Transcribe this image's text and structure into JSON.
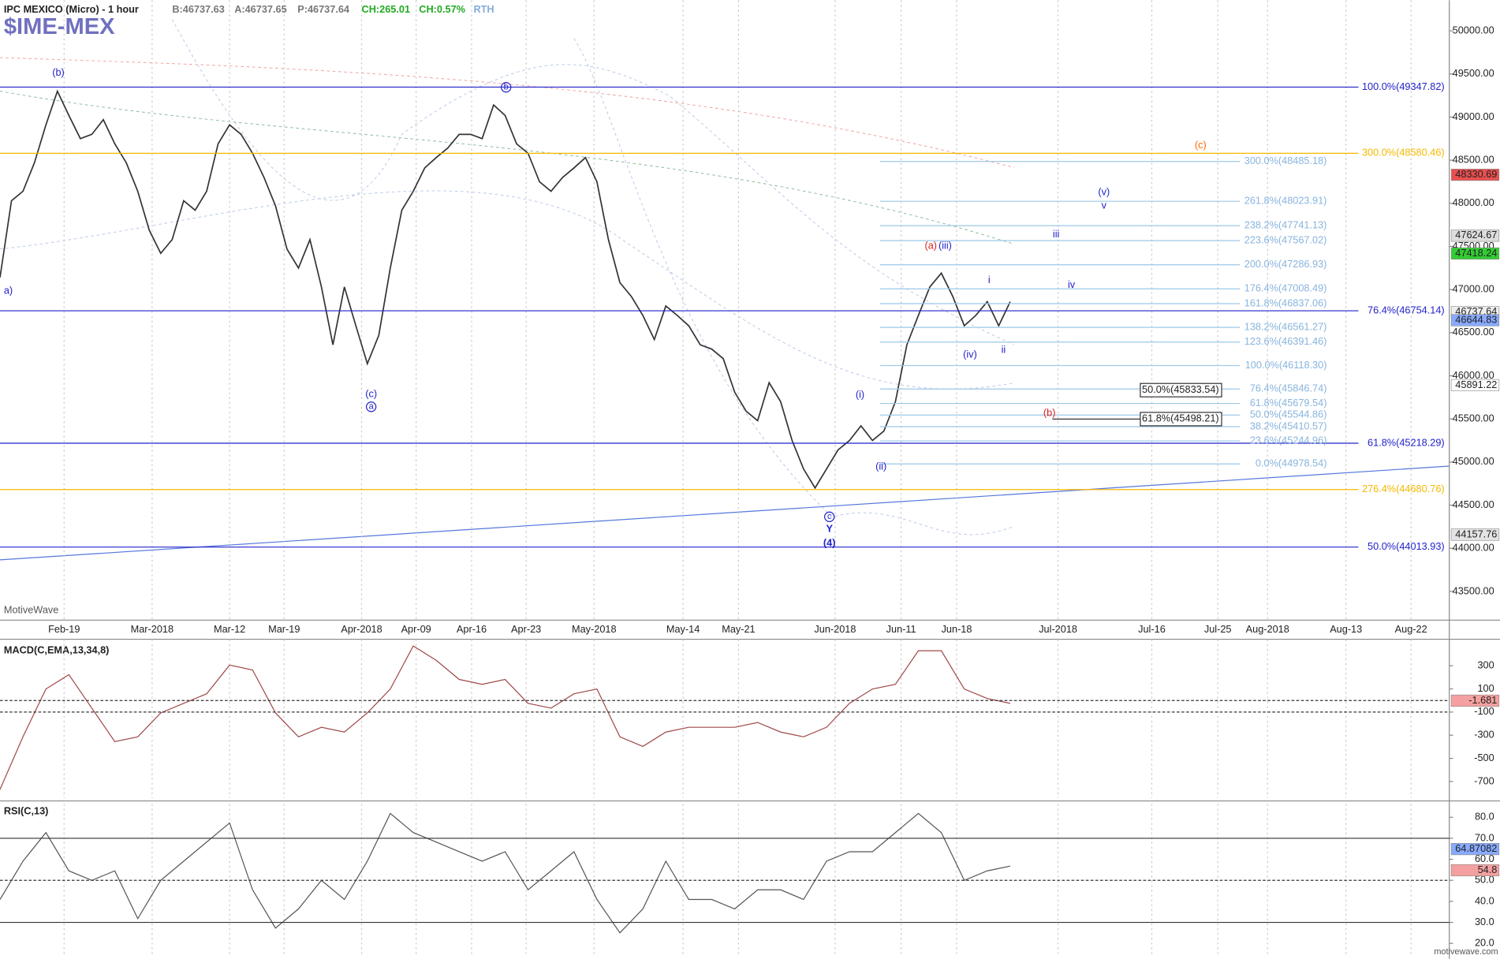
{
  "chart_data": [
    {
      "type": "line",
      "title": "IPC MEXICO (Micro) - 1 hour",
      "symbol": "$IME-MEX",
      "quote": [
        {
          "text": "B:46737.63",
          "color": "#777777"
        },
        {
          "text": "A:46737.65",
          "color": "#777777"
        },
        {
          "text": "P:46737.64",
          "color": "#777777"
        },
        {
          "text": "CH:265.01",
          "color": "#22aa22"
        },
        {
          "text": "CH:0.57%",
          "color": "#22aa22"
        },
        {
          "text": "RTH",
          "color": "#88aadd"
        }
      ],
      "xticks": [
        "Feb-19",
        "Mar-2018",
        "Mar-12",
        "Mar-19",
        "Apr-2018",
        "Apr-09",
        "Apr-16",
        "Apr-23",
        "May-2018",
        "May-14",
        "May-21",
        "Jun-2018",
        "Jun-11",
        "Jun-18",
        "Jul-2018",
        "Jul-16",
        "Jul-25",
        "Aug-2018",
        "Aug-13",
        "Aug-22"
      ],
      "ylim": [
        43167,
        50355
      ],
      "yticks": [
        {
          "value": 50000,
          "label": "50000.00"
        },
        {
          "value": 49500,
          "label": "49500.00"
        },
        {
          "value": 49000,
          "label": "49000.00"
        },
        {
          "value": 48500,
          "label": "48500.00"
        },
        {
          "value": 48000,
          "label": "48000.00"
        },
        {
          "value": 47500,
          "label": "47500.00"
        },
        {
          "value": 47000,
          "label": "47000.00"
        },
        {
          "value": 46500,
          "label": "46500.00"
        },
        {
          "value": 46000,
          "label": "46000.00"
        },
        {
          "value": 45500,
          "label": "45500.00"
        },
        {
          "value": 45000,
          "label": "45000.00"
        },
        {
          "value": 44500,
          "label": "44500.00"
        },
        {
          "value": 44000,
          "label": "44000.00"
        },
        {
          "value": 43500,
          "label": "43500.00"
        }
      ],
      "series": [
        {
          "color": "#333333",
          "values": [
            47140,
            48030,
            48140,
            48470,
            48910,
            49300,
            49020,
            48750,
            48800,
            48970,
            48690,
            48470,
            48140,
            47690,
            47420,
            47580,
            48030,
            47920,
            48140,
            48690,
            48910,
            48800,
            48580,
            48300,
            47970,
            47470,
            47250,
            47580,
            47030,
            46360,
            47030,
            46580,
            46140,
            46470,
            47250,
            47920,
            48140,
            48410,
            48530,
            48640,
            48800,
            48800,
            48750,
            49140,
            49020,
            48690,
            48580,
            48250,
            48140,
            48300,
            48410,
            48530,
            48250,
            47580,
            47080,
            46920,
            46700,
            46420,
            46810,
            46700,
            46580,
            46360,
            46310,
            46200,
            45810,
            45590,
            45480,
            45920,
            45700,
            45250,
            44920,
            44700,
            44920,
            45140,
            45250,
            45420,
            45250,
            45360,
            45700,
            46360,
            46700,
            47030,
            47190,
            46920,
            46580,
            46700,
            46860,
            46580,
            46860
          ]
        }
      ],
      "hlines": [
        {
          "value": 49347.82,
          "label": "100.0%(49347.82)",
          "color": "#2222cc"
        },
        {
          "value": 48580.46,
          "label": "300.0%(48580.46)",
          "color": "#f5b800"
        },
        {
          "value": 46754.14,
          "label": "76.4%(46754.14)",
          "color": "#2222cc"
        },
        {
          "value": 45218.29,
          "label": "61.8%(45218.29)",
          "color": "#2222cc"
        },
        {
          "value": 44680.76,
          "label": "276.4%(44680.76)",
          "color": "#f5b800"
        },
        {
          "value": 44013.93,
          "label": "50.0%(44013.93)",
          "color": "#2222cc"
        }
      ],
      "fib_levels": [
        {
          "value": 48485.18,
          "label": "300.0%(48485.18)"
        },
        {
          "value": 48023.91,
          "label": "261.8%(48023.91)"
        },
        {
          "value": 47741.13,
          "label": "238.2%(47741.13)"
        },
        {
          "value": 47567.02,
          "label": "223.6%(47567.02)"
        },
        {
          "value": 47286.93,
          "label": "200.0%(47286.93)"
        },
        {
          "value": 47008.49,
          "label": "176.4%(47008.49)"
        },
        {
          "value": 46837.06,
          "label": "161.8%(46837.06)"
        },
        {
          "value": 46561.27,
          "label": "138.2%(46561.27)"
        },
        {
          "value": 46391.46,
          "label": "123.6%(46391.46)"
        },
        {
          "value": 46118.3,
          "label": "100.0%(46118.30)"
        },
        {
          "value": 45846.74,
          "label": "76.4%(45846.74)"
        },
        {
          "value": 45679.54,
          "label": "61.8%(45679.54)"
        },
        {
          "value": 45544.86,
          "label": "50.0%(45544.86)"
        },
        {
          "value": 45410.57,
          "label": "38.2%(45410.57)"
        },
        {
          "value": 45244.96,
          "label": "23.6%(45244.96)"
        },
        {
          "value": 44978.54,
          "label": "0.0%(44978.54)"
        }
      ],
      "boxes": [
        {
          "value": 45833.54,
          "label": "50.0%(45833.54)"
        },
        {
          "value": 45498.21,
          "label": "61.8%(45498.21)"
        }
      ],
      "price_tags": [
        {
          "value": 48330.69,
          "bg": "#e85050"
        },
        {
          "value": 47624.67,
          "bg": "#dddddd"
        },
        {
          "value": 47418.24,
          "bg": "#33cc33"
        },
        {
          "value": 46737.64,
          "bg": "#eeeeee"
        },
        {
          "value": 46644.83,
          "bg": "#88aaff"
        },
        {
          "value": 45891.22,
          "bg": "#ffffff"
        },
        {
          "value": 44157.76,
          "bg": "#e4e4e4"
        }
      ],
      "annotations": [
        {
          "text": "(b)",
          "color": "#2222cc"
        },
        {
          "text": "b",
          "color": "#2222cc",
          "circled": true
        },
        {
          "text": "a)",
          "color": "#2222cc"
        },
        {
          "text": "(c)",
          "color": "#2222cc"
        },
        {
          "text": "a",
          "color": "#2222cc",
          "circled": true
        },
        {
          "text": "c",
          "color": "#2222cc",
          "circled": true
        },
        {
          "text": "Y",
          "color": "#2222cc",
          "bold": true
        },
        {
          "text": "(4)",
          "color": "#2222cc",
          "bold": true
        },
        {
          "text": "(i)",
          "color": "#2222cc"
        },
        {
          "text": "(ii)",
          "color": "#2222cc"
        },
        {
          "text": "(a)",
          "color": "#dd2222"
        },
        {
          "text": "(iii)",
          "color": "#2222cc"
        },
        {
          "text": "i",
          "color": "#2222cc"
        },
        {
          "text": "(iv)",
          "color": "#2222cc"
        },
        {
          "text": "ii",
          "color": "#2222cc"
        },
        {
          "text": "iii",
          "color": "#2222cc"
        },
        {
          "text": "iv",
          "color": "#2222cc"
        },
        {
          "text": "(v)",
          "color": "#2222cc"
        },
        {
          "text": "v",
          "color": "#2222cc"
        },
        {
          "text": "(c)",
          "color": "#ff6600"
        },
        {
          "text": "(b)",
          "color": "#dd2222"
        }
      ],
      "watermark": "MotiveWave",
      "footer": "motivewave.com"
    },
    {
      "type": "line",
      "title": "MACD(C,EMA,13,34,8)",
      "ylim": [
        -843,
        529
      ],
      "yticks": [
        300,
        100,
        -100,
        -300,
        -500,
        -700
      ],
      "series": [
        {
          "color": "#a04848",
          "values": [
            -769,
            -314,
            99,
            223,
            -66,
            -355,
            -314,
            -107,
            -25,
            58,
            306,
            264,
            -107,
            -314,
            -231,
            -273,
            -107,
            99,
            471,
            347,
            182,
            140,
            182,
            -25,
            -66,
            58,
            99,
            -314,
            -397,
            -273,
            -231,
            -231,
            -231,
            -190,
            -273,
            -314,
            -231,
            -25,
            99,
            140,
            430,
            430,
            99,
            17,
            -25
          ]
        }
      ],
      "price_tags": [
        {
          "value": -1.681,
          "bg": "#f4a0a0"
        }
      ]
    },
    {
      "type": "line",
      "title": "RSI(C,13)",
      "ylim": [
        13.6,
        86.4
      ],
      "yticks": [
        {
          "value": 80,
          "label": "80.0"
        },
        {
          "value": 70,
          "label": "70.0"
        },
        {
          "value": 60,
          "label": "60.0"
        },
        {
          "value": 50,
          "label": "50.0"
        },
        {
          "value": 40,
          "label": "40.0"
        },
        {
          "value": 30,
          "label": "30.0"
        },
        {
          "value": 20,
          "label": "20.0"
        }
      ],
      "series": [
        {
          "color": "#555555",
          "values": [
            40.9,
            59.1,
            72.7,
            54.5,
            50,
            54.5,
            31.8,
            50,
            59.1,
            68.2,
            77.3,
            45.5,
            27.3,
            36.4,
            50,
            40.9,
            59.1,
            81.8,
            72.7,
            68.2,
            63.6,
            59.1,
            63.6,
            45.5,
            54.5,
            63.6,
            40.9,
            25,
            36.4,
            59.1,
            40.9,
            40.9,
            36.4,
            45.5,
            45.5,
            40.9,
            59.1,
            63.6,
            63.6,
            72.7,
            81.8,
            72.7,
            50,
            54.5,
            56.8
          ]
        }
      ],
      "price_tags": [
        {
          "value": 64.87082,
          "bg": "#88aaff"
        },
        {
          "value": 54.8,
          "bg": "#f4a0a0"
        }
      ]
    }
  ]
}
